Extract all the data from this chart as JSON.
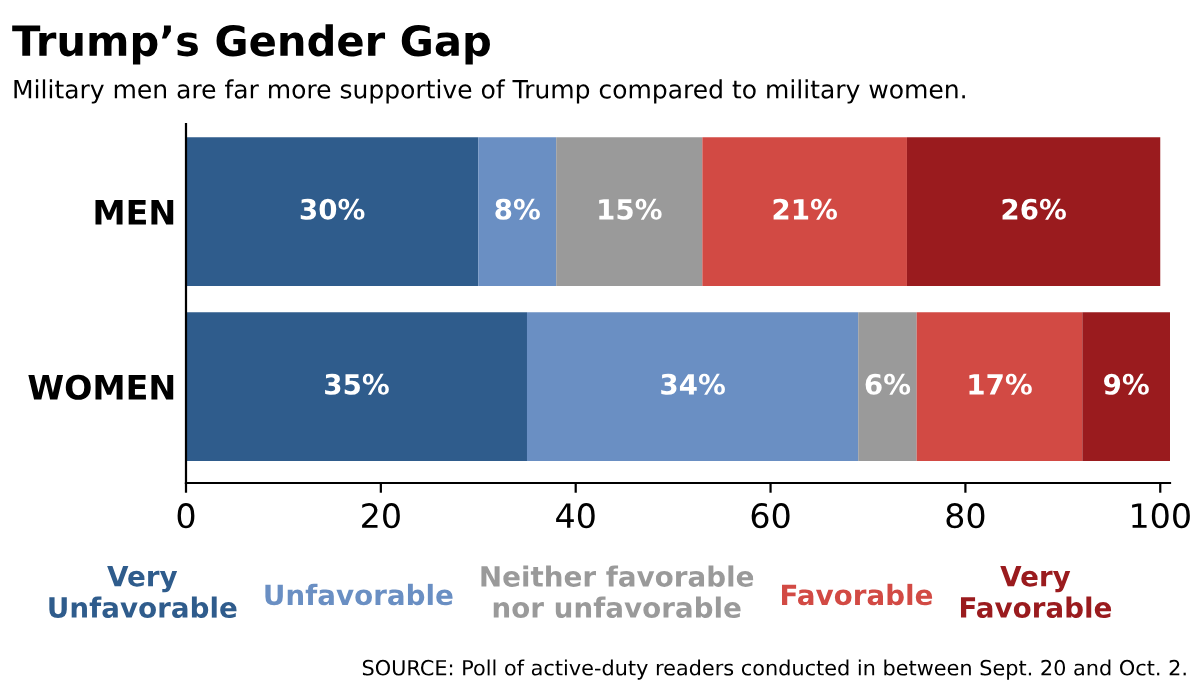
{
  "chart_data": {
    "type": "bar",
    "orientation": "horizontal",
    "stacked": true,
    "title": "Trump’s Gender Gap",
    "subtitle": "Military men are far more supportive of Trump compared to military women.",
    "categories": [
      "MEN",
      "WOMEN"
    ],
    "series": [
      {
        "name": "Very\nUnfavorable",
        "color": "#2f5c8c",
        "values": [
          30,
          35
        ],
        "value_labels": [
          "30%",
          "35%"
        ]
      },
      {
        "name": "Unfavorable",
        "color": "#6a8fc3",
        "values": [
          8,
          34
        ],
        "value_labels": [
          "8%",
          "34%"
        ]
      },
      {
        "name": "Neither favorable\nnor unfavorable",
        "color": "#9a9a9a",
        "values": [
          15,
          6
        ],
        "value_labels": [
          "15%",
          "6%"
        ]
      },
      {
        "name": "Favorable",
        "color": "#d24a44",
        "values": [
          21,
          17
        ],
        "value_labels": [
          "21%",
          "17%"
        ]
      },
      {
        "name": "Very\nFavorable",
        "color": "#9a1b1e",
        "values": [
          26,
          9
        ],
        "value_labels": [
          "26%",
          "9%"
        ]
      }
    ],
    "xlim": [
      0,
      101
    ],
    "xticks": [
      0,
      20,
      40,
      60,
      80,
      100
    ],
    "grid": false,
    "legend": "bottom",
    "annotations": [
      "SOURCE: Poll of active-duty readers conducted in between Sept. 20 and Oct. 2."
    ]
  }
}
